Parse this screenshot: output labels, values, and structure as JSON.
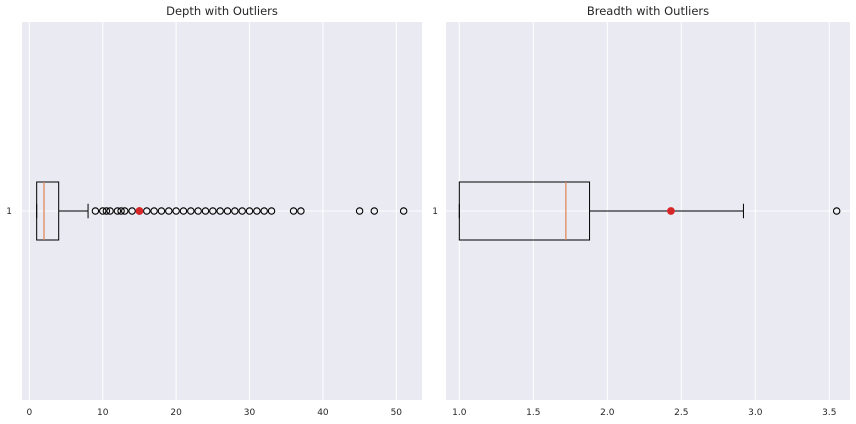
{
  "chart_data": [
    {
      "type": "boxplot",
      "orientation": "horizontal",
      "title": "Depth with Outliers",
      "category_labels": [
        "1"
      ],
      "xlim": [
        -1,
        53.5
      ],
      "xticks": [
        0,
        10,
        20,
        30,
        40,
        50
      ],
      "xtick_labels": [
        "0",
        "10",
        "20",
        "30",
        "40",
        "50"
      ],
      "grid": true,
      "box": {
        "whisker_low": 1,
        "q1": 1,
        "median": 2,
        "q3": 4,
        "whisker_high": 8
      },
      "outliers": [
        9,
        10,
        10.5,
        11,
        12,
        12.5,
        13,
        14,
        15,
        16,
        17,
        18,
        19,
        20,
        21,
        22,
        23,
        24,
        25,
        26,
        27,
        28,
        29,
        30,
        31,
        32,
        33,
        36,
        37,
        45,
        47,
        51
      ],
      "highlight": {
        "value": 15,
        "color": "#d62728"
      }
    },
    {
      "type": "boxplot",
      "orientation": "horizontal",
      "title": "Breadth with Outliers",
      "category_labels": [
        "1"
      ],
      "xlim": [
        0.91,
        3.64
      ],
      "xticks": [
        1.0,
        1.5,
        2.0,
        2.5,
        3.0,
        3.5
      ],
      "xtick_labels": [
        "1.0",
        "1.5",
        "2.0",
        "2.5",
        "3.0",
        "3.5"
      ],
      "grid": true,
      "box": {
        "whisker_low": 1.0,
        "q1": 1.0,
        "median": 1.72,
        "q3": 1.88,
        "whisker_high": 2.92
      },
      "outliers": [
        3.55
      ],
      "highlight": {
        "value": 2.43,
        "color": "#d62728"
      }
    }
  ],
  "style": {
    "panel_bg": "#eaeaf2",
    "grid_color": "#ffffff",
    "box_color": "#000000",
    "median_color": "#dd8452",
    "outlier_edge": "#000000"
  }
}
